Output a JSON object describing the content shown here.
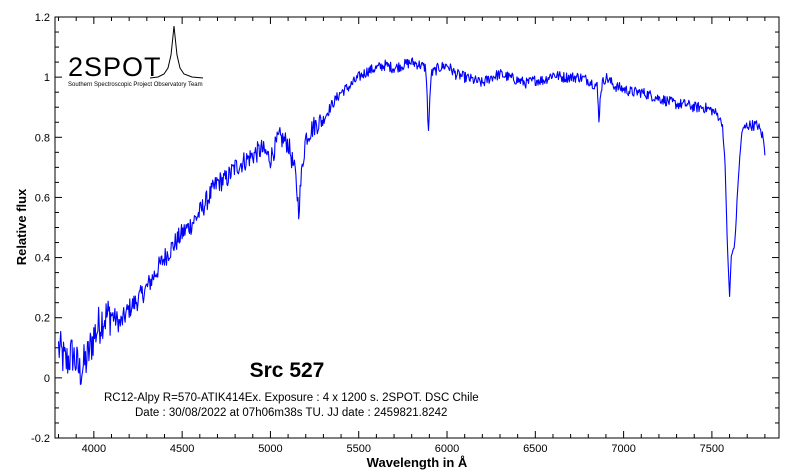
{
  "logo": {
    "name": "2SPOT",
    "subtitle": "Southern Spectroscopic Project Observatory Team"
  },
  "annotations": {
    "title": "Src 527",
    "line1": "RC12-Alpy R=570-ATIK414Ex. Exposure : 4 x 1200 s. 2SPOT. DSC Chile",
    "line2": "Date : 30/08/2022 at 07h06m38s TU. JJ date : 2459821.8242"
  },
  "colors": {
    "series": "#0000ff",
    "axis": "#000000",
    "background": "#ffffff"
  },
  "chart_data": {
    "type": "line",
    "title": "Src 527",
    "xlabel": "Wavelength in Å",
    "ylabel": "Relative flux",
    "xlim": [
      3780,
      7880
    ],
    "ylim": [
      -0.2,
      1.2
    ],
    "xticks": [
      4000,
      4500,
      5000,
      5500,
      6000,
      6500,
      7000,
      7500
    ],
    "yticks": [
      -0.2,
      0,
      0.2,
      0.4,
      0.6,
      0.8,
      1,
      1.2
    ],
    "ytick_labels": [
      "-0.2",
      "0",
      "0.2",
      "0.4",
      "0.6",
      "0.8",
      "1",
      "1.2"
    ],
    "grid": false,
    "series": [
      {
        "x": [
          3800,
          3840,
          3880,
          3920,
          3960,
          4000,
          4050,
          4100,
          4150,
          4200,
          4250,
          4300,
          4350,
          4400,
          4450,
          4500,
          4550,
          4600,
          4650,
          4700,
          4750,
          4800,
          4850,
          4900,
          4950,
          5000,
          5050,
          5100,
          5140,
          5160,
          5180,
          5200,
          5250,
          5300,
          5350,
          5400,
          5450,
          5500,
          5550,
          5600,
          5650,
          5700,
          5750,
          5800,
          5850,
          5880,
          5895,
          5910,
          5950,
          6000,
          6050,
          6100,
          6150,
          6200,
          6250,
          6300,
          6350,
          6400,
          6450,
          6500,
          6550,
          6600,
          6650,
          6700,
          6750,
          6800,
          6850,
          6860,
          6870,
          6880,
          6900,
          6950,
          7000,
          7050,
          7100,
          7150,
          7200,
          7250,
          7300,
          7350,
          7400,
          7450,
          7500,
          7540,
          7560,
          7575,
          7590,
          7600,
          7610,
          7630,
          7650,
          7670,
          7700,
          7730,
          7760,
          7790,
          7800
        ],
        "y": [
          0.1,
          0.05,
          0.08,
          0.02,
          0.06,
          0.14,
          0.2,
          0.21,
          0.18,
          0.23,
          0.26,
          0.3,
          0.35,
          0.4,
          0.44,
          0.48,
          0.51,
          0.55,
          0.6,
          0.65,
          0.66,
          0.7,
          0.72,
          0.74,
          0.76,
          0.73,
          0.8,
          0.78,
          0.68,
          0.56,
          0.7,
          0.8,
          0.84,
          0.86,
          0.91,
          0.95,
          0.97,
          1.0,
          1.02,
          1.03,
          1.04,
          1.03,
          1.04,
          1.05,
          1.04,
          1.03,
          0.82,
          1.01,
          1.03,
          1.04,
          1.01,
          1.0,
          0.99,
          0.98,
          1.0,
          1.01,
          1.0,
          0.99,
          0.98,
          0.99,
          0.99,
          1.01,
          1.0,
          1.0,
          1.0,
          0.99,
          0.97,
          0.86,
          0.95,
          0.98,
          1.0,
          0.97,
          0.96,
          0.95,
          0.95,
          0.94,
          0.93,
          0.92,
          0.91,
          0.91,
          0.9,
          0.9,
          0.89,
          0.87,
          0.84,
          0.7,
          0.4,
          0.27,
          0.4,
          0.45,
          0.67,
          0.82,
          0.84,
          0.84,
          0.84,
          0.8,
          0.74
        ]
      }
    ]
  }
}
